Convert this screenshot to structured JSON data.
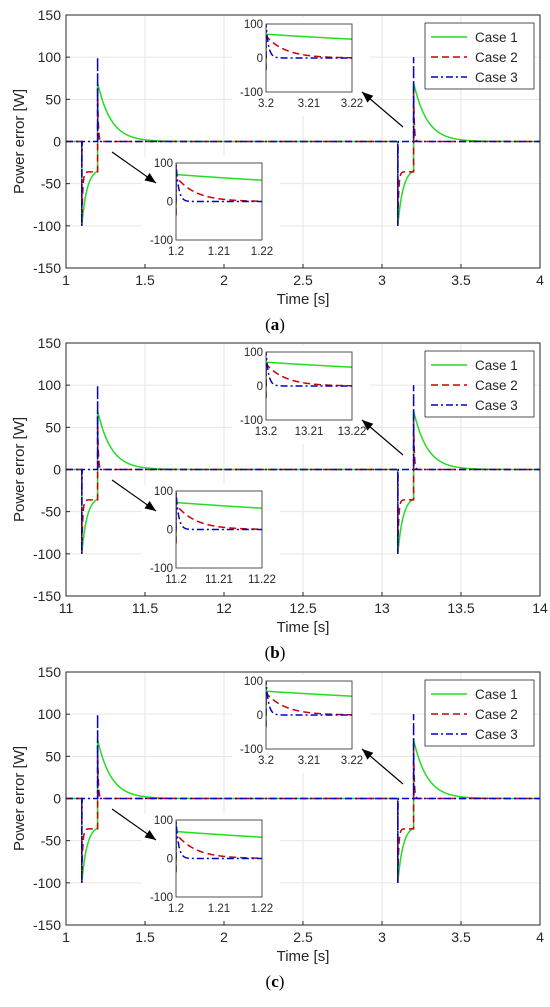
{
  "figure": {
    "colors": {
      "case1": "#22dd22",
      "case2": "#cc0000",
      "case3": "#0000cc",
      "grid": "#e6e6e6",
      "axis": "#262626"
    }
  },
  "chart_data": [
    {
      "type": "line",
      "panel_label": "(a)",
      "caption_letter": "a",
      "xlabel": "Time [s]",
      "ylabel": "Power error [W]",
      "xlim": [
        1,
        4
      ],
      "ylim": [
        -150,
        150
      ],
      "x_ticks": [
        "1",
        "1.5",
        "2",
        "2.5",
        "3",
        "3.5",
        "4"
      ],
      "y_ticks": [
        "-150",
        "-100",
        "-50",
        "0",
        "50",
        "100",
        "150"
      ],
      "grid": true,
      "legend_position": "top-right",
      "legend": [
        "Case 1",
        "Case 2",
        "Case 3"
      ],
      "events": [
        {
          "start": 1.1,
          "end": 1.2
        },
        {
          "start": 3.1,
          "end": 3.2
        }
      ],
      "series": [
        {
          "name": "Case 1",
          "style": "solid",
          "description_points": {
            "x": [
              1,
              1.1,
              1.1,
              1.19,
              1.2,
              1.21,
              1.3,
              1.5,
              1.8,
              4
            ],
            "y": [
              0,
              0,
              -100,
              -35,
              70,
              50,
              20,
              3,
              0,
              0
            ]
          }
        },
        {
          "name": "Case 2",
          "style": "dashed",
          "description_points": {
            "x": [
              1,
              1.1,
              1.1,
              1.12,
              1.19,
              1.2,
              1.205,
              1.22,
              4
            ],
            "y": [
              0,
              0,
              -100,
              -36,
              -36,
              65,
              25,
              0,
              0
            ]
          }
        },
        {
          "name": "Case 3",
          "style": "dashdot",
          "description_points": {
            "x": [
              1,
              1.1,
              1.1,
              1.103,
              1.2,
              1.2,
              1.203,
              4
            ],
            "y": [
              0,
              0,
              -100,
              0,
              0,
              100,
              0,
              0
            ]
          }
        }
      ],
      "insets": [
        {
          "xlim": [
            1.2,
            1.22
          ],
          "ylim": [
            -100,
            100
          ],
          "x_ticks": [
            "1.2",
            "1.21",
            "1.22"
          ],
          "y_ticks": [
            "-100",
            "0",
            "100"
          ]
        },
        {
          "xlim": [
            3.2,
            3.22
          ],
          "ylim": [
            -100,
            100
          ],
          "x_ticks": [
            "3.2",
            "3.21",
            "3.22"
          ],
          "y_ticks": [
            "-100",
            "0",
            "100"
          ]
        }
      ]
    },
    {
      "type": "line",
      "panel_label": "(b)",
      "caption_letter": "b",
      "xlabel": "Time [s]",
      "ylabel": "Power error [W]",
      "xlim": [
        11,
        14
      ],
      "ylim": [
        -150,
        150
      ],
      "x_ticks": [
        "11",
        "11.5",
        "12",
        "12.5",
        "13",
        "13.5",
        "14"
      ],
      "y_ticks": [
        "-150",
        "-100",
        "-50",
        "0",
        "50",
        "100",
        "150"
      ],
      "grid": true,
      "legend_position": "top-right",
      "legend": [
        "Case 1",
        "Case 2",
        "Case 3"
      ],
      "events": [
        {
          "start": 11.1,
          "end": 11.2
        },
        {
          "start": 13.1,
          "end": 13.2
        }
      ],
      "series": [
        {
          "name": "Case 1",
          "style": "solid"
        },
        {
          "name": "Case 2",
          "style": "dashed"
        },
        {
          "name": "Case 3",
          "style": "dashdot"
        }
      ],
      "insets": [
        {
          "xlim": [
            11.2,
            11.22
          ],
          "ylim": [
            -100,
            100
          ],
          "x_ticks": [
            "11.2",
            "11.21",
            "11.22"
          ],
          "y_ticks": [
            "-100",
            "0",
            "100"
          ]
        },
        {
          "xlim": [
            13.2,
            13.22
          ],
          "ylim": [
            -100,
            100
          ],
          "x_ticks": [
            "13.2",
            "13.21",
            "13.22"
          ],
          "y_ticks": [
            "-100",
            "0",
            "100"
          ]
        }
      ]
    },
    {
      "type": "line",
      "panel_label": "(c)",
      "caption_letter": "c",
      "xlabel": "Time [s]",
      "ylabel": "Power error [W]",
      "xlim": [
        1,
        4
      ],
      "ylim": [
        -150,
        150
      ],
      "x_ticks": [
        "1",
        "1.5",
        "2",
        "2.5",
        "3",
        "3.5",
        "4"
      ],
      "y_ticks": [
        "-150",
        "-100",
        "-50",
        "0",
        "50",
        "100",
        "150"
      ],
      "grid": true,
      "legend_position": "top-right",
      "legend": [
        "Case 1",
        "Case 2",
        "Case 3"
      ],
      "events": [
        {
          "start": 1.1,
          "end": 1.2
        },
        {
          "start": 3.1,
          "end": 3.2
        }
      ],
      "series": [
        {
          "name": "Case 1",
          "style": "solid"
        },
        {
          "name": "Case 2",
          "style": "dashed"
        },
        {
          "name": "Case 3",
          "style": "dashdot"
        }
      ],
      "insets": [
        {
          "xlim": [
            1.2,
            1.22
          ],
          "ylim": [
            -100,
            100
          ],
          "x_ticks": [
            "1.2",
            "1.21",
            "1.22"
          ],
          "y_ticks": [
            "-100",
            "0",
            "100"
          ]
        },
        {
          "xlim": [
            3.2,
            3.22
          ],
          "ylim": [
            -100,
            100
          ],
          "x_ticks": [
            "3.2",
            "3.21",
            "3.22"
          ],
          "y_ticks": [
            "-100",
            "0",
            "100"
          ]
        }
      ]
    }
  ]
}
